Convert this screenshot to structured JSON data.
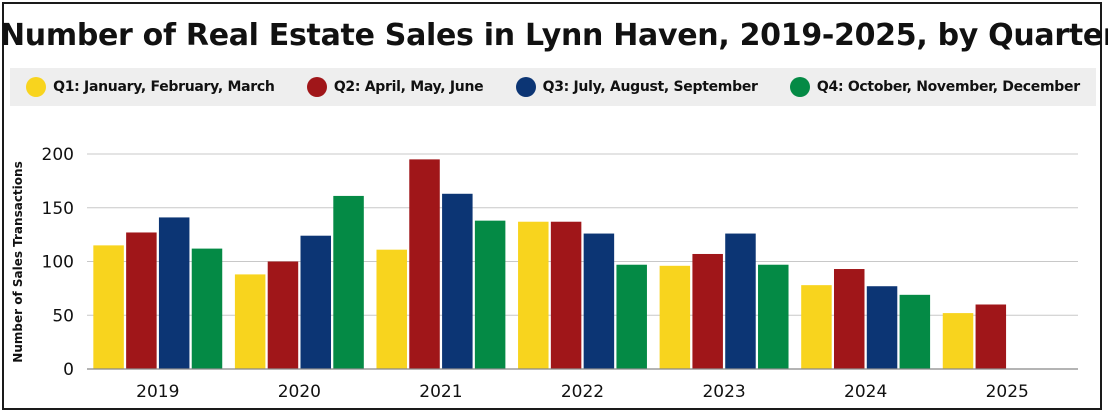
{
  "chart_data": {
    "type": "bar",
    "title": "Number of Real Estate Sales in Lynn Haven, 2019-2025, by Quarter",
    "xlabel": "",
    "ylabel": "Number of Sales Transactions",
    "ylim": [
      0,
      200
    ],
    "yticks": [
      "0",
      "50",
      "100",
      "150",
      "200"
    ],
    "grid": true,
    "legend_position": "top",
    "categories": [
      "2019",
      "2020",
      "2021",
      "2022",
      "2023",
      "2024",
      "2025"
    ],
    "series": [
      {
        "name": "Q1: January, February, March",
        "color": "#F8D41E",
        "values": [
          115,
          88,
          111,
          137,
          96,
          78,
          52
        ]
      },
      {
        "name": "Q2: April, May, June",
        "color": "#A01619",
        "values": [
          127,
          100,
          195,
          137,
          107,
          93,
          60
        ]
      },
      {
        "name": "Q3: July, August, September",
        "color": "#0C3574",
        "values": [
          141,
          124,
          163,
          126,
          126,
          77,
          null
        ]
      },
      {
        "name": "Q4: October, November, December",
        "color": "#048A45",
        "values": [
          112,
          161,
          138,
          97,
          97,
          69,
          null
        ]
      }
    ]
  }
}
